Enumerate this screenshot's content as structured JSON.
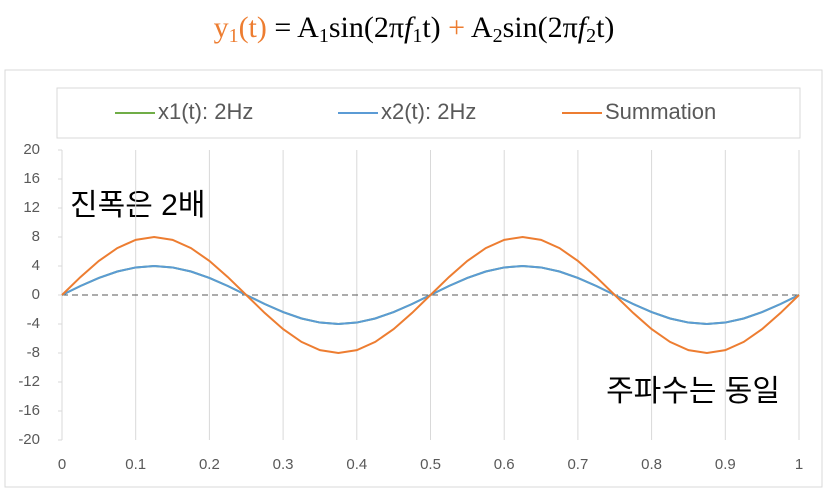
{
  "chart_data": {
    "type": "line",
    "title": [
      "y",
      "1",
      "(t)",
      " = A",
      "1",
      "sin(2π",
      "f",
      "1",
      "t) ",
      "+",
      " A",
      "2",
      "sin(2π",
      "f",
      "2",
      "t)"
    ],
    "annotations": [
      "진폭은 2배",
      "주파수는 동일"
    ],
    "x": [
      0,
      0.025,
      0.05,
      0.075,
      0.1,
      0.125,
      0.15,
      0.175,
      0.2,
      0.225,
      0.25,
      0.275,
      0.3,
      0.325,
      0.35,
      0.375,
      0.4,
      0.425,
      0.45,
      0.475,
      0.5,
      0.525,
      0.55,
      0.575,
      0.6,
      0.625,
      0.65,
      0.675,
      0.7,
      0.725,
      0.75,
      0.775,
      0.8,
      0.825,
      0.85,
      0.875,
      0.9,
      0.925,
      0.95,
      0.975,
      1
    ],
    "series": [
      {
        "name": "x1(t): 2Hz",
        "color": "#70ad47",
        "values": [
          0,
          1.24,
          2.35,
          3.24,
          3.8,
          4,
          3.8,
          3.24,
          2.35,
          1.24,
          0,
          -1.24,
          -2.35,
          -3.24,
          -3.8,
          -4,
          -3.8,
          -3.24,
          -2.35,
          -1.24,
          0,
          1.24,
          2.35,
          3.24,
          3.8,
          4,
          3.8,
          3.24,
          2.35,
          1.24,
          0,
          -1.24,
          -2.35,
          -3.24,
          -3.8,
          -4,
          -3.8,
          -3.24,
          -2.35,
          -1.24,
          0
        ]
      },
      {
        "name": "x2(t): 2Hz",
        "color": "#5b9bd5",
        "values": [
          0,
          1.24,
          2.35,
          3.24,
          3.8,
          4,
          3.8,
          3.24,
          2.35,
          1.24,
          0,
          -1.24,
          -2.35,
          -3.24,
          -3.8,
          -4,
          -3.8,
          -3.24,
          -2.35,
          -1.24,
          0,
          1.24,
          2.35,
          3.24,
          3.8,
          4,
          3.8,
          3.24,
          2.35,
          1.24,
          0,
          -1.24,
          -2.35,
          -3.24,
          -3.8,
          -4,
          -3.8,
          -3.24,
          -2.35,
          -1.24,
          0
        ]
      },
      {
        "name": "Summation",
        "color": "#ed7d31",
        "values": [
          0,
          2.47,
          4.7,
          6.47,
          7.61,
          8,
          7.61,
          6.47,
          4.7,
          2.47,
          0,
          -2.47,
          -4.7,
          -6.47,
          -7.61,
          -8,
          -7.61,
          -6.47,
          -4.7,
          -2.47,
          0,
          2.47,
          4.7,
          6.47,
          7.61,
          8,
          7.61,
          6.47,
          4.7,
          2.47,
          0,
          -2.47,
          -4.7,
          -6.47,
          -7.61,
          -8,
          -7.61,
          -6.47,
          -4.7,
          -2.47,
          0
        ]
      }
    ],
    "xlim": [
      0,
      1
    ],
    "xticks": [
      0,
      0.1,
      0.2,
      0.3,
      0.4,
      0.5,
      0.6,
      0.7,
      0.8,
      0.9,
      1
    ],
    "ylim": [
      -20,
      20
    ],
    "yticks": [
      -20,
      -16,
      -12,
      -8,
      -4,
      0,
      4,
      8,
      12,
      16,
      20
    ],
    "grid": true,
    "legend": "top"
  }
}
